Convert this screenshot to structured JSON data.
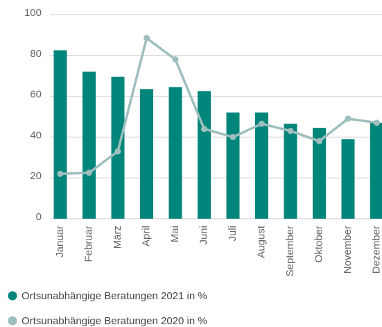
{
  "chart_data": {
    "type": "bar",
    "categories": [
      "Januar",
      "Februar",
      "März",
      "April",
      "Mai",
      "Juni",
      "Juli",
      "August",
      "September",
      "Oktober",
      "November",
      "Dezember"
    ],
    "series": [
      {
        "name": "Ortsunabhängige Beratungen 2021 in %",
        "type": "bar",
        "color": "#00857a",
        "values": [
          82.5,
          72,
          69.5,
          63.5,
          64.5,
          62.5,
          52,
          52,
          46.5,
          44.5,
          39,
          47
        ]
      },
      {
        "name": "Ortsunabhängige Beratungen 2020 in %",
        "type": "line",
        "color": "#9dbfbd",
        "values": [
          22,
          22.5,
          33,
          88.5,
          78,
          44,
          40,
          46.5,
          43,
          38,
          49,
          47
        ]
      }
    ],
    "ylim": [
      0,
      100
    ],
    "yticks": [
      0,
      20,
      40,
      60,
      80,
      100
    ],
    "grid": true,
    "legend": "bottom"
  }
}
